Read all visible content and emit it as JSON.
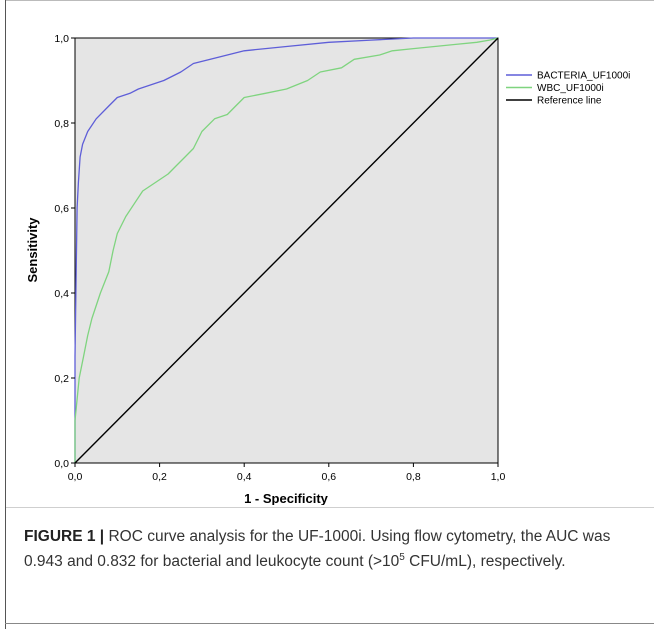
{
  "chart_data": {
    "type": "line",
    "xlabel": "1 - Specificity",
    "ylabel": "Sensitivity",
    "xlim": [
      0,
      1
    ],
    "ylim": [
      0,
      1
    ],
    "x_ticks": [
      "0,0",
      "0,2",
      "0,4",
      "0,6",
      "0,8",
      "1,0"
    ],
    "y_ticks": [
      "0,0",
      "0,2",
      "0,4",
      "0,6",
      "0,8",
      "1,0"
    ],
    "grid": false,
    "legend_position": "right",
    "plot_background": "#e5e5e5",
    "series": [
      {
        "name": "BACTERIA_UF1000i",
        "color": "#5e5ed8",
        "points": [
          [
            0,
            0
          ],
          [
            0,
            0.25
          ],
          [
            0.003,
            0.47
          ],
          [
            0.005,
            0.6
          ],
          [
            0.008,
            0.66
          ],
          [
            0.012,
            0.72
          ],
          [
            0.018,
            0.75
          ],
          [
            0.03,
            0.78
          ],
          [
            0.05,
            0.81
          ],
          [
            0.08,
            0.84
          ],
          [
            0.1,
            0.86
          ],
          [
            0.13,
            0.87
          ],
          [
            0.15,
            0.88
          ],
          [
            0.18,
            0.89
          ],
          [
            0.21,
            0.9
          ],
          [
            0.25,
            0.92
          ],
          [
            0.28,
            0.94
          ],
          [
            0.32,
            0.95
          ],
          [
            0.36,
            0.96
          ],
          [
            0.4,
            0.97
          ],
          [
            0.45,
            0.975
          ],
          [
            0.5,
            0.98
          ],
          [
            0.6,
            0.99
          ],
          [
            0.7,
            0.995
          ],
          [
            0.8,
            1.0
          ],
          [
            0.9,
            1.0
          ],
          [
            1.0,
            1.0
          ]
        ]
      },
      {
        "name": "WBC_UF1000i",
        "color": "#7fd47f",
        "points": [
          [
            0,
            0
          ],
          [
            0,
            0.1
          ],
          [
            0.01,
            0.2
          ],
          [
            0.02,
            0.25
          ],
          [
            0.03,
            0.3
          ],
          [
            0.04,
            0.34
          ],
          [
            0.06,
            0.4
          ],
          [
            0.08,
            0.45
          ],
          [
            0.09,
            0.5
          ],
          [
            0.1,
            0.54
          ],
          [
            0.12,
            0.58
          ],
          [
            0.14,
            0.61
          ],
          [
            0.16,
            0.64
          ],
          [
            0.19,
            0.66
          ],
          [
            0.22,
            0.68
          ],
          [
            0.24,
            0.7
          ],
          [
            0.26,
            0.72
          ],
          [
            0.28,
            0.74
          ],
          [
            0.3,
            0.78
          ],
          [
            0.33,
            0.81
          ],
          [
            0.36,
            0.82
          ],
          [
            0.38,
            0.84
          ],
          [
            0.4,
            0.86
          ],
          [
            0.45,
            0.87
          ],
          [
            0.5,
            0.88
          ],
          [
            0.55,
            0.9
          ],
          [
            0.58,
            0.92
          ],
          [
            0.63,
            0.93
          ],
          [
            0.66,
            0.95
          ],
          [
            0.72,
            0.96
          ],
          [
            0.75,
            0.97
          ],
          [
            0.8,
            0.975
          ],
          [
            0.85,
            0.98
          ],
          [
            0.9,
            0.985
          ],
          [
            0.95,
            0.99
          ],
          [
            0.98,
            0.995
          ],
          [
            1.0,
            1.0
          ]
        ]
      },
      {
        "name": "Reference line",
        "color": "#000000",
        "points": [
          [
            0,
            0
          ],
          [
            1,
            1
          ]
        ]
      }
    ]
  },
  "caption": {
    "label": "FIGURE 1 |",
    "text_1": " ROC curve analysis for the UF-1000i. Using flow cytometry, the AUC was 0.943 and 0.832 for bacterial and leukocyte count (>10",
    "exponent": "5",
    "text_2": " CFU/mL), respectively."
  }
}
